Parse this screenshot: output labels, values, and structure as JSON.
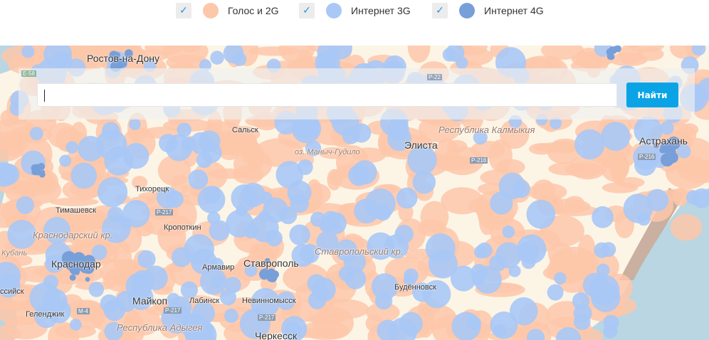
{
  "legend": {
    "items": [
      {
        "label": "Голос и 2G",
        "checked": true,
        "color": "#fdc7a9"
      },
      {
        "label": "Интернет 3G",
        "checked": true,
        "color": "#a9c8f6"
      },
      {
        "label": "Интернет 4G",
        "checked": true,
        "color": "#779fd9"
      }
    ],
    "check_icon": "✓"
  },
  "search": {
    "value": "",
    "placeholder": "",
    "button_label": "Найти"
  },
  "map": {
    "colors": {
      "land": "#fcf5e6",
      "sea": "#b9d6e2",
      "voice": "#fdc7a9",
      "g3": "#a9c8f6",
      "g4": "#779fd9"
    },
    "labels": {
      "rostov": "Ростов-на-Дону",
      "salsk": "Сальск",
      "kalmykia": "Республика Калмыкия",
      "manych": "оз. Маныч-Гудило",
      "elista": "Элиста",
      "astrakhan": "Астрахань",
      "tikhoretsk": "Тихорецк",
      "timashevsk": "Тимашевск",
      "krasnodar_krai": "Краснодарский кр.",
      "kropotkin": "Кропоткин",
      "kuban": "Кубань",
      "krasnodar": "Краснодар",
      "armavir": "Армавир",
      "stavropol": "Ставрополь",
      "stavropol_krai": "Ставропольский кр.",
      "budennovsk": "Будённовск",
      "maykop": "Майкоп",
      "labinsk": "Лабинск",
      "nevinnomyssk": "Невинномысск",
      "gelendzhik": "Геленджик",
      "novorossiysk": "ссийск",
      "adygea": "Республика Адыгея",
      "cherkessk": "Черкесск",
      "r_216": "Р-216",
      "r_217": "Р-217",
      "m_4": "М-4",
      "e_58": "Е-58",
      "r_22": "Р-22"
    }
  }
}
